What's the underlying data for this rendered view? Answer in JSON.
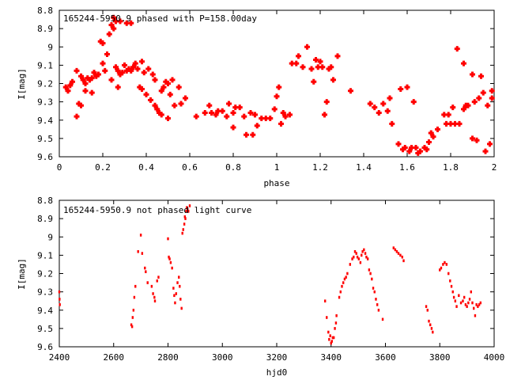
{
  "chart_data": [
    {
      "type": "scatter",
      "title": "165244-5950.9 phased with P=158.00day",
      "xlabel": "phase",
      "ylabel": "I[mag]",
      "xlim": [
        0,
        2
      ],
      "ylim": [
        9.6,
        8.8
      ],
      "y_inverted": true,
      "grid": false,
      "marker": "filled-cross",
      "color": "#ff0000",
      "x_ticks": [
        0,
        0.2,
        0.4,
        0.6,
        0.8,
        1,
        1.2,
        1.4,
        1.6,
        1.8,
        2
      ],
      "x_tick_labels": [
        "0",
        "0.2",
        "0.4",
        "0.6",
        "0.8",
        "1",
        "1.2",
        "1.4",
        "1.6",
        "1.8",
        "2"
      ],
      "y_ticks": [
        8.8,
        8.9,
        9,
        9.1,
        9.2,
        9.3,
        9.4,
        9.5,
        9.6
      ],
      "y_tick_labels": [
        "8.8",
        "8.9",
        "9",
        "9.1",
        "9.2",
        "9.3",
        "9.4",
        "9.5",
        "9.6"
      ],
      "points": [
        [
          0.03,
          9.22
        ],
        [
          0.04,
          9.24
        ],
        [
          0.05,
          9.21
        ],
        [
          0.06,
          9.19
        ],
        [
          0.08,
          9.13
        ],
        [
          0.08,
          9.38
        ],
        [
          0.09,
          9.31
        ],
        [
          0.1,
          9.32
        ],
        [
          0.1,
          9.16
        ],
        [
          0.11,
          9.18
        ],
        [
          0.12,
          9.24
        ],
        [
          0.12,
          9.2
        ],
        [
          0.13,
          9.17
        ],
        [
          0.14,
          9.18
        ],
        [
          0.15,
          9.25
        ],
        [
          0.15,
          9.17
        ],
        [
          0.16,
          9.14
        ],
        [
          0.17,
          9.16
        ],
        [
          0.18,
          9.15
        ],
        [
          0.19,
          8.97
        ],
        [
          0.2,
          8.98
        ],
        [
          0.2,
          9.09
        ],
        [
          0.21,
          9.13
        ],
        [
          0.22,
          9.04
        ],
        [
          0.23,
          8.93
        ],
        [
          0.24,
          9.18
        ],
        [
          0.24,
          8.88
        ],
        [
          0.25,
          8.9
        ],
        [
          0.25,
          8.84
        ],
        [
          0.26,
          8.86
        ],
        [
          0.26,
          9.11
        ],
        [
          0.27,
          9.22
        ],
        [
          0.27,
          9.13
        ],
        [
          0.28,
          9.15
        ],
        [
          0.28,
          8.86
        ],
        [
          0.29,
          9.14
        ],
        [
          0.3,
          9.1
        ],
        [
          0.31,
          8.87
        ],
        [
          0.31,
          9.13
        ],
        [
          0.32,
          9.12
        ],
        [
          0.33,
          8.87
        ],
        [
          0.33,
          9.13
        ],
        [
          0.34,
          9.11
        ],
        [
          0.35,
          9.09
        ],
        [
          0.36,
          9.12
        ],
        [
          0.37,
          9.22
        ],
        [
          0.38,
          9.23
        ],
        [
          0.38,
          9.08
        ],
        [
          0.39,
          9.14
        ],
        [
          0.4,
          9.26
        ],
        [
          0.41,
          9.12
        ],
        [
          0.42,
          9.29
        ],
        [
          0.43,
          9.15
        ],
        [
          0.44,
          9.18
        ],
        [
          0.44,
          9.32
        ],
        [
          0.45,
          9.34
        ],
        [
          0.46,
          9.36
        ],
        [
          0.47,
          9.24
        ],
        [
          0.47,
          9.37
        ],
        [
          0.48,
          9.22
        ],
        [
          0.49,
          9.19
        ],
        [
          0.5,
          9.39
        ],
        [
          0.5,
          9.2
        ],
        [
          0.51,
          9.26
        ],
        [
          0.52,
          9.18
        ],
        [
          0.53,
          9.32
        ],
        [
          0.55,
          9.22
        ],
        [
          0.56,
          9.31
        ],
        [
          0.58,
          9.28
        ],
        [
          0.63,
          9.38
        ],
        [
          0.67,
          9.36
        ],
        [
          0.69,
          9.32
        ],
        [
          0.7,
          9.36
        ],
        [
          0.72,
          9.37
        ],
        [
          0.73,
          9.35
        ],
        [
          0.75,
          9.35
        ],
        [
          0.77,
          9.38
        ],
        [
          0.78,
          9.31
        ],
        [
          0.8,
          9.44
        ],
        [
          0.8,
          9.36
        ],
        [
          0.81,
          9.33
        ],
        [
          0.83,
          9.33
        ],
        [
          0.85,
          9.38
        ],
        [
          0.86,
          9.48
        ],
        [
          0.88,
          9.36
        ],
        [
          0.89,
          9.48
        ],
        [
          0.9,
          9.37
        ],
        [
          0.91,
          9.43
        ],
        [
          0.93,
          9.39
        ],
        [
          0.95,
          9.39
        ],
        [
          0.97,
          9.39
        ],
        [
          0.99,
          9.34
        ],
        [
          1.0,
          9.27
        ],
        [
          1.01,
          9.22
        ],
        [
          1.02,
          9.42
        ],
        [
          1.03,
          9.36
        ],
        [
          1.04,
          9.38
        ],
        [
          1.06,
          9.37
        ],
        [
          1.07,
          9.09
        ],
        [
          1.09,
          9.09
        ],
        [
          1.1,
          9.05
        ],
        [
          1.12,
          9.11
        ],
        [
          1.14,
          9.0
        ],
        [
          1.16,
          9.12
        ],
        [
          1.17,
          9.19
        ],
        [
          1.18,
          9.07
        ],
        [
          1.19,
          9.11
        ],
        [
          1.2,
          9.08
        ],
        [
          1.21,
          9.11
        ],
        [
          1.22,
          9.37
        ],
        [
          1.23,
          9.3
        ],
        [
          1.24,
          9.12
        ],
        [
          1.25,
          9.11
        ],
        [
          1.26,
          9.18
        ],
        [
          1.28,
          9.05
        ],
        [
          1.34,
          9.24
        ],
        [
          1.43,
          9.31
        ],
        [
          1.45,
          9.33
        ],
        [
          1.47,
          9.36
        ],
        [
          1.49,
          9.31
        ],
        [
          1.51,
          9.35
        ],
        [
          1.52,
          9.28
        ],
        [
          1.53,
          9.42
        ],
        [
          1.56,
          9.53
        ],
        [
          1.57,
          9.23
        ],
        [
          1.58,
          9.56
        ],
        [
          1.59,
          9.55
        ],
        [
          1.6,
          9.22
        ],
        [
          1.61,
          9.57
        ],
        [
          1.62,
          9.55
        ],
        [
          1.63,
          9.3
        ],
        [
          1.64,
          9.55
        ],
        [
          1.65,
          9.58
        ],
        [
          1.66,
          9.57
        ],
        [
          1.68,
          9.55
        ],
        [
          1.69,
          9.56
        ],
        [
          1.7,
          9.52
        ],
        [
          1.71,
          9.47
        ],
        [
          1.72,
          9.49
        ],
        [
          1.74,
          9.45
        ],
        [
          1.77,
          9.37
        ],
        [
          1.78,
          9.42
        ],
        [
          1.79,
          9.37
        ],
        [
          1.8,
          9.42
        ],
        [
          1.81,
          9.33
        ],
        [
          1.82,
          9.42
        ],
        [
          1.83,
          9.01
        ],
        [
          1.84,
          9.42
        ],
        [
          1.86,
          9.34
        ],
        [
          1.86,
          9.09
        ],
        [
          1.87,
          9.32
        ],
        [
          1.88,
          9.32
        ],
        [
          1.9,
          9.15
        ],
        [
          1.9,
          9.5
        ],
        [
          1.91,
          9.3
        ],
        [
          1.92,
          9.51
        ],
        [
          1.93,
          9.28
        ],
        [
          1.94,
          9.16
        ],
        [
          1.95,
          9.25
        ],
        [
          1.96,
          9.57
        ],
        [
          1.97,
          9.32
        ],
        [
          1.98,
          9.53
        ],
        [
          1.99,
          9.28
        ],
        [
          1.99,
          9.24
        ]
      ]
    },
    {
      "type": "scatter",
      "title": "165244-5950.9 not phased light curve",
      "xlabel": "hjd0",
      "ylabel": "I[mag]",
      "xlim": [
        2400,
        4000
      ],
      "ylim": [
        9.6,
        8.8
      ],
      "y_inverted": true,
      "grid": false,
      "marker": "small-dot",
      "color": "#ff0000",
      "x_ticks": [
        2400,
        2600,
        2800,
        3000,
        3200,
        3400,
        3600,
        3800,
        4000
      ],
      "x_tick_labels": [
        "2400",
        "2600",
        "2800",
        "3000",
        "3200",
        "3400",
        "3600",
        "3800",
        "4000"
      ],
      "y_ticks": [
        8.8,
        8.9,
        9,
        9.1,
        9.2,
        9.3,
        9.4,
        9.5,
        9.6
      ],
      "y_tick_labels": [
        "8.8",
        "8.9",
        "9",
        "9.1",
        "9.2",
        "9.3",
        "9.4",
        "9.5",
        "9.6"
      ],
      "points": [
        [
          2400,
          9.3
        ],
        [
          2401,
          9.34
        ],
        [
          2402,
          9.37
        ],
        [
          2665,
          9.48
        ],
        [
          2668,
          9.49
        ],
        [
          2670,
          9.44
        ],
        [
          2673,
          9.4
        ],
        [
          2676,
          9.33
        ],
        [
          2680,
          9.27
        ],
        [
          2690,
          9.08
        ],
        [
          2700,
          8.99
        ],
        [
          2705,
          9.09
        ],
        [
          2715,
          9.17
        ],
        [
          2718,
          9.19
        ],
        [
          2725,
          9.25
        ],
        [
          2740,
          9.27
        ],
        [
          2745,
          9.31
        ],
        [
          2750,
          9.33
        ],
        [
          2752,
          9.35
        ],
        [
          2760,
          9.24
        ],
        [
          2765,
          9.22
        ],
        [
          2800,
          9.01
        ],
        [
          2803,
          9.11
        ],
        [
          2806,
          9.12
        ],
        [
          2810,
          9.14
        ],
        [
          2815,
          9.17
        ],
        [
          2820,
          9.28
        ],
        [
          2823,
          9.32
        ],
        [
          2826,
          9.36
        ],
        [
          2830,
          9.31
        ],
        [
          2835,
          9.25
        ],
        [
          2840,
          9.22
        ],
        [
          2843,
          9.27
        ],
        [
          2846,
          9.34
        ],
        [
          2850,
          9.39
        ],
        [
          2853,
          8.98
        ],
        [
          2856,
          8.96
        ],
        [
          2860,
          8.93
        ],
        [
          2862,
          8.89
        ],
        [
          2864,
          8.9
        ],
        [
          2867,
          8.86
        ],
        [
          2869,
          8.84
        ],
        [
          2872,
          8.85
        ],
        [
          2875,
          8.86
        ],
        [
          2880,
          8.83
        ],
        [
          3378,
          9.35
        ],
        [
          3384,
          9.44
        ],
        [
          3390,
          9.52
        ],
        [
          3393,
          9.56
        ],
        [
          3397,
          9.54
        ],
        [
          3400,
          9.58
        ],
        [
          3403,
          9.57
        ],
        [
          3406,
          9.55
        ],
        [
          3410,
          9.55
        ],
        [
          3414,
          9.5
        ],
        [
          3418,
          9.47
        ],
        [
          3420,
          9.43
        ],
        [
          3430,
          9.33
        ],
        [
          3435,
          9.3
        ],
        [
          3440,
          9.27
        ],
        [
          3445,
          9.25
        ],
        [
          3450,
          9.23
        ],
        [
          3455,
          9.22
        ],
        [
          3460,
          9.2
        ],
        [
          3470,
          9.15
        ],
        [
          3478,
          9.12
        ],
        [
          3483,
          9.11
        ],
        [
          3488,
          9.08
        ],
        [
          3493,
          9.09
        ],
        [
          3497,
          9.11
        ],
        [
          3502,
          9.12
        ],
        [
          3508,
          9.14
        ],
        [
          3512,
          9.1
        ],
        [
          3516,
          9.08
        ],
        [
          3521,
          9.07
        ],
        [
          3526,
          9.09
        ],
        [
          3530,
          9.11
        ],
        [
          3535,
          9.12
        ],
        [
          3540,
          9.18
        ],
        [
          3545,
          9.2
        ],
        [
          3550,
          9.23
        ],
        [
          3555,
          9.28
        ],
        [
          3560,
          9.3
        ],
        [
          3565,
          9.34
        ],
        [
          3570,
          9.37
        ],
        [
          3575,
          9.4
        ],
        [
          3590,
          9.45
        ],
        [
          3630,
          9.06
        ],
        [
          3636,
          9.07
        ],
        [
          3642,
          9.08
        ],
        [
          3648,
          9.09
        ],
        [
          3655,
          9.1
        ],
        [
          3662,
          9.11
        ],
        [
          3667,
          9.13
        ],
        [
          3750,
          9.38
        ],
        [
          3755,
          9.4
        ],
        [
          3760,
          9.46
        ],
        [
          3765,
          9.48
        ],
        [
          3770,
          9.5
        ],
        [
          3774,
          9.52
        ],
        [
          3800,
          9.18
        ],
        [
          3805,
          9.17
        ],
        [
          3812,
          9.15
        ],
        [
          3818,
          9.14
        ],
        [
          3825,
          9.15
        ],
        [
          3832,
          9.2
        ],
        [
          3838,
          9.24
        ],
        [
          3843,
          9.27
        ],
        [
          3848,
          9.3
        ],
        [
          3852,
          9.33
        ],
        [
          3857,
          9.35
        ],
        [
          3862,
          9.38
        ],
        [
          3870,
          9.32
        ],
        [
          3878,
          9.36
        ],
        [
          3885,
          9.35
        ],
        [
          3890,
          9.33
        ],
        [
          3895,
          9.37
        ],
        [
          3900,
          9.38
        ],
        [
          3905,
          9.36
        ],
        [
          3910,
          9.34
        ],
        [
          3915,
          9.3
        ],
        [
          3920,
          9.36
        ],
        [
          3925,
          9.39
        ],
        [
          3930,
          9.43
        ],
        [
          3935,
          9.37
        ],
        [
          3940,
          9.38
        ],
        [
          3945,
          9.37
        ],
        [
          3950,
          9.36
        ]
      ]
    }
  ]
}
